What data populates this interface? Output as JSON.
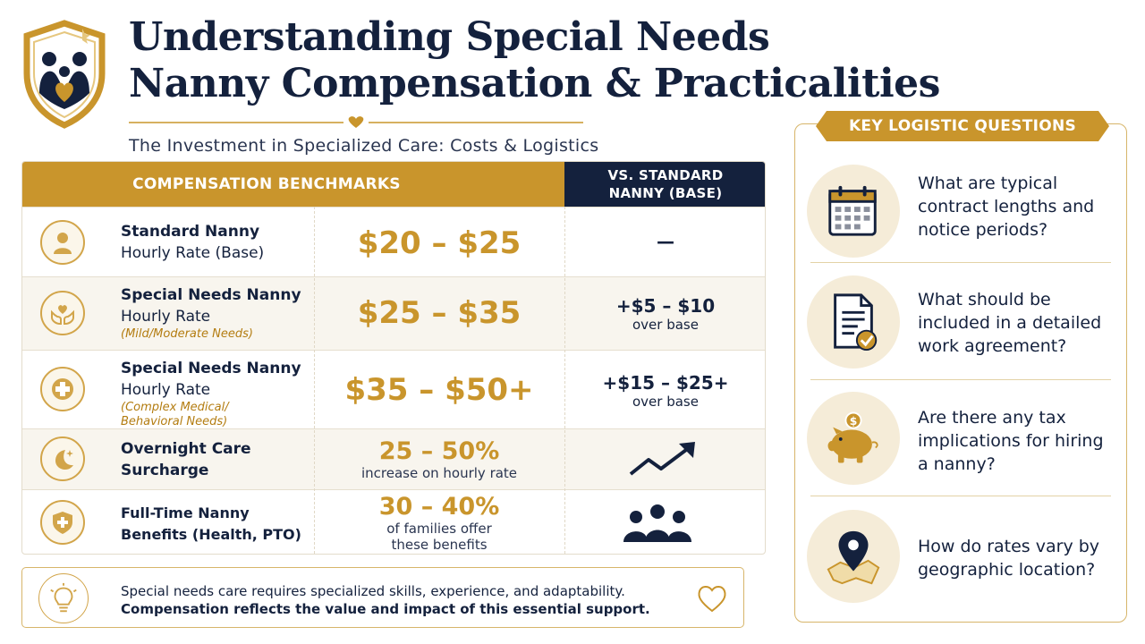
{
  "header": {
    "title_line1": "Understanding Special Needs",
    "title_line2": "Nanny Compensation & Practicalities",
    "subtitle": "The Investment in Specialized Care: Costs & Logistics"
  },
  "table": {
    "header_left": "COMPENSATION BENCHMARKS",
    "header_right_line1": "VS. STANDARD",
    "header_right_line2": "NANNY (BASE)",
    "rows": [
      {
        "icon": "person-icon",
        "label": "Standard Nanny",
        "sublabel": "Hourly Rate (Base)",
        "note": "",
        "rate": "$20 – $25",
        "rate_sub": "",
        "diff": "—",
        "diff_sub": ""
      },
      {
        "icon": "heart-hands-icon",
        "label": "Special Needs Nanny",
        "sublabel": "Hourly Rate",
        "note": "(Mild/Moderate Needs)",
        "rate": "$25 – $35",
        "rate_sub": "",
        "diff": "+$5 – $10",
        "diff_sub": "over base"
      },
      {
        "icon": "medical-cross-icon",
        "label": "Special Needs Nanny",
        "sublabel": "Hourly Rate",
        "note_line1": "(Complex Medical/",
        "note_line2": "Behavioral Needs)",
        "rate": "$35 – $50+",
        "rate_sub": "",
        "diff": "+$15 – $25+",
        "diff_sub": "over base"
      },
      {
        "icon": "moon-stars-icon",
        "label_line1": "Overnight Care",
        "label_line2": "Surcharge",
        "rate": "25 – 50%",
        "rate_sub": "increase on hourly rate",
        "diff_icon": "trend-up-icon"
      },
      {
        "icon": "shield-plus-icon",
        "label_line1": "Full-Time Nanny",
        "label_line2": "Benefits (Health, PTO)",
        "rate": "30 – 40%",
        "rate_sub_line1": "of families offer",
        "rate_sub_line2": "these benefits",
        "diff_icon": "group-icon"
      }
    ]
  },
  "note": {
    "line1": "Special needs care requires specialized skills, experience, and adaptability.",
    "line2": "Compensation reflects the value and impact of this essential support."
  },
  "panel": {
    "title": "KEY LOGISTIC QUESTIONS",
    "questions": [
      {
        "icon": "calendar-icon",
        "text": "What are typical contract lengths and notice periods?"
      },
      {
        "icon": "document-check-icon",
        "text": "What should be included in a detailed work agreement?"
      },
      {
        "icon": "piggy-bank-icon",
        "text": "Are there any tax implications for hiring a nanny?"
      },
      {
        "icon": "map-pin-icon",
        "text": "How do rates vary by geographic location?"
      }
    ]
  },
  "colors": {
    "navy": "#14213d",
    "gold": "#c9952c",
    "cream": "#f5ecd8"
  }
}
